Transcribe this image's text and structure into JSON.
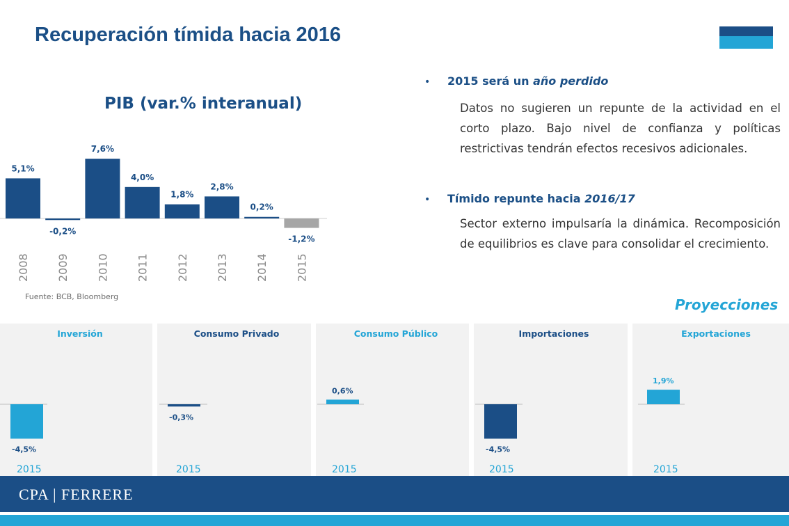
{
  "slide": {
    "title": "Recuperación tímida hacia 2016",
    "source": "Fuente: BCB, Bloomberg",
    "projections_label": "Proyecciones",
    "footer_logo": "CPA | FERRERE"
  },
  "bullets": [
    {
      "head_plain": "2015 será un ",
      "head_italic": "año perdido",
      "body": "Datos no sugieren un repunte de la actividad en el corto plazo. Bajo nivel de confianza y políticas restrictivas tendrán efectos recesivos adicionales."
    },
    {
      "head_plain": "Tímido repunte hacia ",
      "head_italic": "2016/17",
      "body": "Sector externo impulsaría la dinámica. Recomposición de equilibrios es clave para consolidar el crecimiento."
    }
  ],
  "colors": {
    "navy": "#1b4e86",
    "light_blue": "#23a5d6",
    "gray_bar": "#a6a6a6",
    "panel_bg": "#f2f2f2"
  },
  "chart_data": [
    {
      "type": "bar",
      "title": "PIB (var.% interanual)",
      "categories": [
        "2008",
        "2009",
        "2010",
        "2011",
        "2012",
        "2013",
        "2014",
        "2015"
      ],
      "values": [
        5.1,
        -0.2,
        7.6,
        4.0,
        1.8,
        2.8,
        0.2,
        -1.2
      ],
      "labels": [
        "5,1%",
        "-0,2%",
        "7,6%",
        "4,0%",
        "1,8%",
        "2,8%",
        "0,2%",
        "-1,2%"
      ],
      "bar_colors": [
        "navy",
        "navy",
        "navy",
        "navy",
        "navy",
        "navy",
        "navy",
        "gray"
      ],
      "tick_orientation": "vertical"
    },
    {
      "type": "bar",
      "title": "Inversión",
      "title_color": "light_blue",
      "categories": [
        "2015"
      ],
      "values": [
        -4.5
      ],
      "labels": [
        "-4,5%"
      ],
      "bar_color": "light_blue",
      "label_color": "navy"
    },
    {
      "type": "bar",
      "title": "Consumo Privado",
      "title_color": "navy",
      "categories": [
        "2015"
      ],
      "values": [
        -0.3
      ],
      "labels": [
        "-0,3%"
      ],
      "bar_color": "navy",
      "label_color": "navy"
    },
    {
      "type": "bar",
      "title": "Consumo Público",
      "title_color": "light_blue",
      "categories": [
        "2015"
      ],
      "values": [
        0.6
      ],
      "labels": [
        "0,6%"
      ],
      "bar_color": "light_blue",
      "label_color": "navy"
    },
    {
      "type": "bar",
      "title": "Importaciones",
      "title_color": "navy",
      "categories": [
        "2015"
      ],
      "values": [
        -4.5
      ],
      "labels": [
        "-4,5%"
      ],
      "bar_color": "navy",
      "label_color": "navy"
    },
    {
      "type": "bar",
      "title": "Exportaciones",
      "title_color": "light_blue",
      "categories": [
        "2015"
      ],
      "values": [
        1.9
      ],
      "labels": [
        "1,9%"
      ],
      "bar_color": "light_blue",
      "label_color": "light_blue"
    }
  ]
}
